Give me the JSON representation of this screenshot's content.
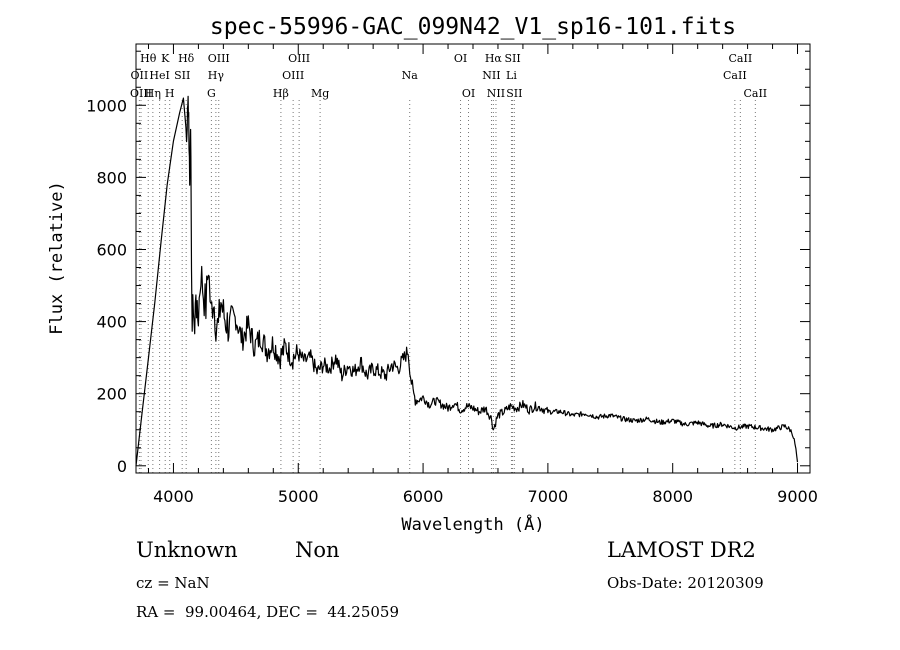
{
  "chart_data": {
    "type": "line",
    "title": "spec-55996-GAC_099N42_V1_sp16-101.fits",
    "xlabel": "Wavelength (Å)",
    "ylabel": "Flux (relative)",
    "xlim": [
      3700,
      9100
    ],
    "ylim": [
      -20,
      1170
    ],
    "x_ticks": [
      4000,
      5000,
      6000,
      7000,
      8000,
      9000
    ],
    "y_ticks": [
      0,
      200,
      400,
      600,
      800,
      1000
    ],
    "grid": false,
    "series": [
      {
        "x": [
          3700,
          3750,
          3800,
          3850,
          3900,
          3950,
          4000,
          4050,
          4080,
          4100,
          4110,
          4115,
          4120,
          4125,
          4130,
          4135,
          4140,
          4150,
          4160,
          4170,
          4180,
          4190,
          4200,
          4220,
          4240,
          4260,
          4280,
          4300,
          4320,
          4340,
          4360,
          4380,
          4400,
          4450,
          4500,
          4550,
          4600,
          4650,
          4700,
          4750,
          4800,
          4850,
          4900,
          4950,
          5000,
          5050,
          5100,
          5150,
          5200,
          5250,
          5300,
          5350,
          5400,
          5450,
          5500,
          5550,
          5600,
          5650,
          5700,
          5750,
          5800,
          5850,
          5880,
          5900,
          5920,
          5950,
          6000,
          6050,
          6100,
          6150,
          6200,
          6250,
          6300,
          6350,
          6400,
          6450,
          6500,
          6550,
          6563,
          6580,
          6600,
          6650,
          6700,
          6750,
          6800,
          6850,
          6900,
          6950,
          7000,
          7100,
          7200,
          7300,
          7400,
          7500,
          7600,
          7700,
          7800,
          7900,
          8000,
          8100,
          8200,
          8300,
          8400,
          8500,
          8600,
          8700,
          8800,
          8850,
          8900,
          8940,
          8960,
          8980,
          9000
        ],
        "y": [
          0,
          150,
          300,
          450,
          620,
          780,
          900,
          980,
          1020,
          950,
          900,
          1050,
          1000,
          920,
          780,
          960,
          800,
          380,
          460,
          360,
          500,
          400,
          420,
          540,
          480,
          440,
          560,
          420,
          470,
          400,
          380,
          460,
          420,
          380,
          410,
          350,
          390,
          330,
          360,
          320,
          340,
          300,
          330,
          300,
          310,
          290,
          300,
          260,
          280,
          270,
          300,
          250,
          280,
          260,
          290,
          250,
          270,
          260,
          250,
          280,
          270,
          300,
          320,
          250,
          200,
          180,
          190,
          170,
          180,
          170,
          160,
          175,
          155,
          165,
          160,
          150,
          160,
          130,
          100,
          120,
          140,
          150,
          165,
          160,
          170,
          155,
          165,
          160,
          150,
          150,
          140,
          145,
          135,
          140,
          130,
          125,
          130,
          120,
          125,
          115,
          120,
          110,
          115,
          105,
          110,
          105,
          100,
          105,
          110,
          100,
          90,
          60,
          10
        ]
      }
    ],
    "lines": [
      {
        "label": "Hθ",
        "x": 3798,
        "row": 0
      },
      {
        "label": "OII",
        "x": 3727,
        "row": 1
      },
      {
        "label": "OIII",
        "x": 3740,
        "row": 2
      },
      {
        "label": "K",
        "x": 3934,
        "row": 0
      },
      {
        "label": "HeI",
        "x": 3889,
        "row": 1
      },
      {
        "label": "Hη",
        "x": 3835,
        "row": 2
      },
      {
        "label": "SII",
        "x": 4070,
        "row": 1
      },
      {
        "label": "H",
        "x": 3970,
        "row": 2
      },
      {
        "label": "Hδ",
        "x": 4102,
        "row": 0
      },
      {
        "label": "OIII",
        "x": 4363,
        "row": 0
      },
      {
        "label": "Hγ",
        "x": 4340,
        "row": 1
      },
      {
        "label": "G",
        "x": 4304,
        "row": 2
      },
      {
        "label": "Hβ",
        "x": 4861,
        "row": 2
      },
      {
        "label": "OIII",
        "x": 5007,
        "row": 0
      },
      {
        "label": "OIII",
        "x": 4959,
        "row": 1
      },
      {
        "label": "Mg",
        "x": 5175,
        "row": 2
      },
      {
        "label": "Na",
        "x": 5893,
        "row": 1
      },
      {
        "label": "OI",
        "x": 6300,
        "row": 0
      },
      {
        "label": "OI",
        "x": 6364,
        "row": 2
      },
      {
        "label": "Hα",
        "x": 6563,
        "row": 0
      },
      {
        "label": "NII",
        "x": 6548,
        "row": 1
      },
      {
        "label": "NII",
        "x": 6584,
        "row": 2
      },
      {
        "label": "SII",
        "x": 6717,
        "row": 0
      },
      {
        "label": "Li",
        "x": 6708,
        "row": 1
      },
      {
        "label": "SII",
        "x": 6731,
        "row": 2
      },
      {
        "label": "CaII",
        "x": 8542,
        "row": 0
      },
      {
        "label": "CaII",
        "x": 8498,
        "row": 1
      },
      {
        "label": "CaII",
        "x": 8662,
        "row": 2
      }
    ]
  },
  "info": {
    "class": "Unknown",
    "subclass": "Non",
    "survey": "LAMOST DR2",
    "cz": "cz = NaN",
    "obs_date": "Obs-Date: 20120309",
    "coords": "RA =  99.00464, DEC =  44.25059"
  }
}
